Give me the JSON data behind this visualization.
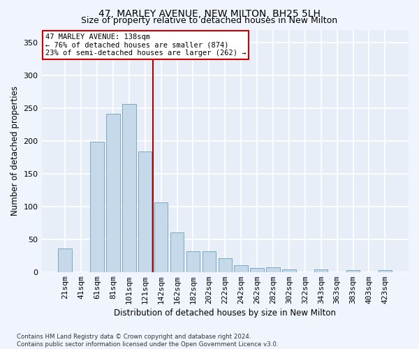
{
  "title": "47, MARLEY AVENUE, NEW MILTON, BH25 5LH",
  "subtitle": "Size of property relative to detached houses in New Milton",
  "xlabel": "Distribution of detached houses by size in New Milton",
  "ylabel": "Number of detached properties",
  "bar_values": [
    36,
    0,
    199,
    242,
    257,
    184,
    106,
    60,
    32,
    32,
    21,
    10,
    6,
    7,
    4,
    0,
    4,
    0,
    3,
    0,
    3
  ],
  "categories": [
    "21sqm",
    "41sqm",
    "61sqm",
    "81sqm",
    "101sqm",
    "121sqm",
    "142sqm",
    "162sqm",
    "182sqm",
    "202sqm",
    "222sqm",
    "242sqm",
    "262sqm",
    "282sqm",
    "302sqm",
    "322sqm",
    "343sqm",
    "363sqm",
    "383sqm",
    "403sqm",
    "423sqm"
  ],
  "bar_color": "#c6d9ea",
  "bar_edge_color": "#7aaabf",
  "vline_color": "#aa0000",
  "annotation_text": "47 MARLEY AVENUE: 138sqm\n← 76% of detached houses are smaller (874)\n23% of semi-detached houses are larger (262) →",
  "annotation_box_color": "#ffffff",
  "annotation_box_edge": "#cc0000",
  "ylim": [
    0,
    370
  ],
  "yticks": [
    0,
    50,
    100,
    150,
    200,
    250,
    300,
    350
  ],
  "bg_color": "#e8eef8",
  "fig_bg_color": "#f0f4fc",
  "grid_color": "#ffffff",
  "footnote": "Contains HM Land Registry data © Crown copyright and database right 2024.\nContains public sector information licensed under the Open Government Licence v3.0.",
  "title_fontsize": 10,
  "subtitle_fontsize": 9,
  "xlabel_fontsize": 8.5,
  "ylabel_fontsize": 8.5,
  "tick_fontsize": 8,
  "annot_fontsize": 7.5
}
